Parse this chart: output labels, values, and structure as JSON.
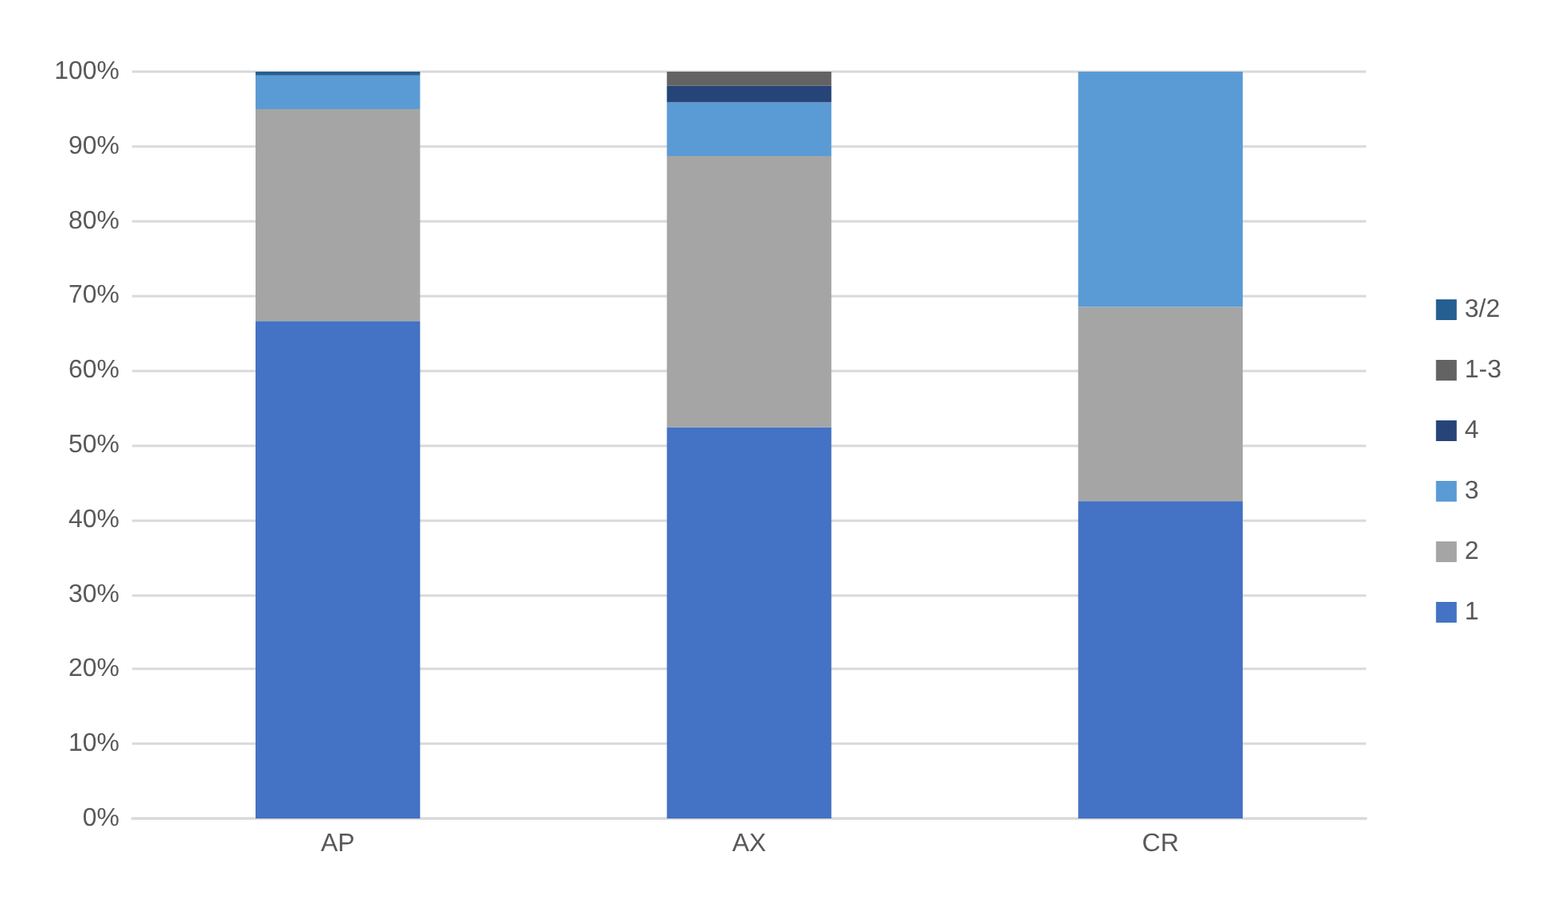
{
  "chart_data": {
    "type": "bar",
    "stacked": true,
    "categories": [
      "AP",
      "AX",
      "CR"
    ],
    "series": [
      {
        "name": "1",
        "color": "#4472c4",
        "values": [
          66.6,
          52.4,
          42.5
        ]
      },
      {
        "name": "2",
        "color": "#a5a5a5",
        "values": [
          28.4,
          36.3,
          26
        ]
      },
      {
        "name": "3",
        "color": "#5b9bd5",
        "values": [
          4.5,
          7.2,
          31.5
        ]
      },
      {
        "name": "4",
        "color": "#264478",
        "values": [
          0,
          2.2,
          0
        ]
      },
      {
        "name": "1-3",
        "color": "#636363",
        "values": [
          0,
          1.9,
          0
        ]
      },
      {
        "name": "3/2",
        "color": "#255e91",
        "values": [
          0.5,
          0,
          0
        ]
      }
    ],
    "ylim": [
      0,
      100
    ],
    "yticks": [
      {
        "value": 0,
        "label": "0%"
      },
      {
        "value": 10,
        "label": "10%"
      },
      {
        "value": 20,
        "label": "20%"
      },
      {
        "value": 30,
        "label": "30%"
      },
      {
        "value": 40,
        "label": "40%"
      },
      {
        "value": 50,
        "label": "50%"
      },
      {
        "value": 60,
        "label": "60%"
      },
      {
        "value": 70,
        "label": "70%"
      },
      {
        "value": 80,
        "label": "80%"
      },
      {
        "value": 90,
        "label": "90%"
      },
      {
        "value": 100,
        "label": "100%"
      }
    ],
    "grid": "y",
    "legend": "right"
  }
}
